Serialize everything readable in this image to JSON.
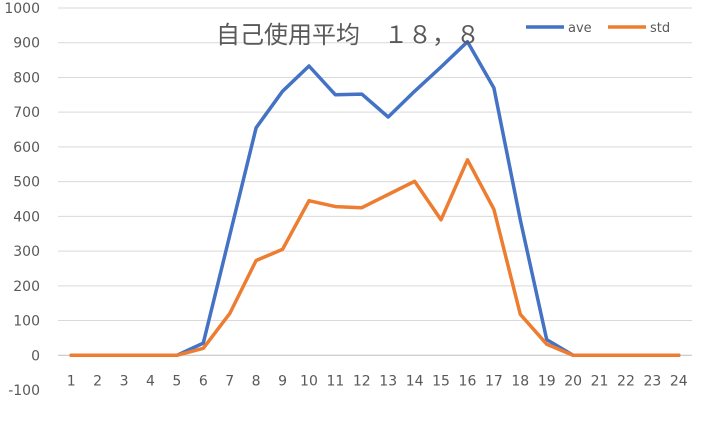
{
  "chart_data": {
    "type": "line",
    "title": "自己使用平均　１８，８",
    "xlabel": "",
    "ylabel": "",
    "x": [
      1,
      2,
      3,
      4,
      5,
      6,
      7,
      8,
      9,
      10,
      11,
      12,
      13,
      14,
      15,
      16,
      17,
      18,
      19,
      20,
      21,
      22,
      23,
      24
    ],
    "ylim": [
      -100,
      1000
    ],
    "yticks": [
      -100,
      0,
      100,
      200,
      300,
      400,
      500,
      600,
      700,
      800,
      900,
      1000
    ],
    "grid": true,
    "legend_position": "top-right",
    "series": [
      {
        "name": "ave",
        "color": "#4472C4",
        "values": [
          0,
          0,
          0,
          0,
          0,
          35,
          345,
          655,
          760,
          833,
          750,
          752,
          686,
          760,
          830,
          903,
          770,
          390,
          45,
          0,
          0,
          0,
          0,
          0
        ]
      },
      {
        "name": "std",
        "color": "#ED7D31",
        "values": [
          0,
          0,
          0,
          0,
          0,
          20,
          120,
          273,
          305,
          445,
          428,
          425,
          463,
          501,
          390,
          563,
          420,
          118,
          32,
          0,
          0,
          0,
          0,
          0
        ]
      }
    ]
  }
}
